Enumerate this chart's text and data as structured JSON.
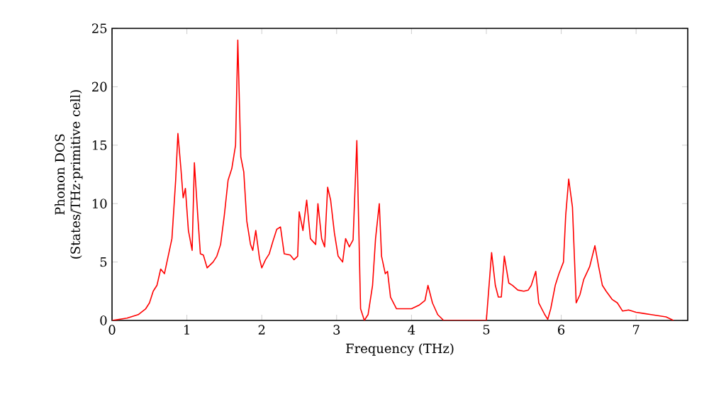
{
  "chart_data": {
    "type": "line",
    "xlabel": "Frequency (THz)",
    "ylabel": "Phonon DOS (States/THz·primitive cell)",
    "xlim": [
      0,
      7.69
    ],
    "ylim": [
      0,
      25
    ],
    "xticks": [
      0,
      1,
      2,
      3,
      4,
      5,
      6,
      7
    ],
    "yticks": [
      0,
      5,
      10,
      15,
      20,
      25
    ],
    "marker": "none",
    "line_style": "solid",
    "series": [
      {
        "color": "#ff0000",
        "x": [
          0,
          0.2,
          0.35,
          0.45,
          0.5,
          0.55,
          0.6,
          0.65,
          0.7,
          0.75,
          0.8,
          0.85,
          0.88,
          0.92,
          0.95,
          0.98,
          1.02,
          1.07,
          1.1,
          1.15,
          1.18,
          1.22,
          1.27,
          1.35,
          1.4,
          1.45,
          1.5,
          1.55,
          1.6,
          1.65,
          1.68,
          1.72,
          1.76,
          1.8,
          1.85,
          1.88,
          1.92,
          1.97,
          2.0,
          2.05,
          2.1,
          2.15,
          2.2,
          2.25,
          2.3,
          2.38,
          2.43,
          2.48,
          2.5,
          2.55,
          2.6,
          2.65,
          2.72,
          2.75,
          2.8,
          2.84,
          2.88,
          2.92,
          2.97,
          3.02,
          3.08,
          3.12,
          3.17,
          3.22,
          3.27,
          3.32,
          3.37,
          3.42,
          3.48,
          3.52,
          3.57,
          3.6,
          3.65,
          3.68,
          3.72,
          3.8,
          4.0,
          4.1,
          4.18,
          4.22,
          4.28,
          4.35,
          4.43,
          5.0,
          5.07,
          5.12,
          5.16,
          5.2,
          5.24,
          5.3,
          5.35,
          5.42,
          5.5,
          5.56,
          5.6,
          5.66,
          5.7,
          5.78,
          5.82,
          5.86,
          5.92,
          5.97,
          6.03,
          6.06,
          6.1,
          6.15,
          6.2,
          6.25,
          6.3,
          6.38,
          6.45,
          6.5,
          6.55,
          6.6,
          6.68,
          6.75,
          6.82,
          6.9,
          7.0,
          7.1,
          7.2,
          7.3,
          7.4,
          7.5
        ],
        "values": [
          0,
          0.2,
          0.5,
          1,
          1.5,
          2.5,
          3,
          4.4,
          4,
          5.5,
          7,
          12,
          16,
          13,
          10.5,
          11.3,
          7.7,
          6,
          13.5,
          8.5,
          5.7,
          5.6,
          4.5,
          5,
          5.5,
          6.5,
          9,
          12,
          13,
          15,
          24,
          14,
          12.7,
          8.5,
          6.5,
          6,
          7.7,
          5.3,
          4.5,
          5.2,
          5.7,
          6.8,
          7.8,
          8,
          5.7,
          5.6,
          5.2,
          5.5,
          9.3,
          7.7,
          10.3,
          7,
          6.5,
          10,
          7,
          6.3,
          11.4,
          10.3,
          7.5,
          5.5,
          5,
          7,
          6.3,
          6.9,
          15.4,
          1,
          0,
          0.5,
          3,
          7,
          10,
          5.5,
          4,
          4.2,
          2,
          1,
          1,
          1.3,
          1.7,
          3,
          1.5,
          0.5,
          0,
          0,
          5.8,
          3,
          2,
          2,
          5.5,
          3.2,
          3,
          2.6,
          2.5,
          2.6,
          3,
          4.2,
          1.5,
          0.5,
          0.1,
          1,
          3,
          4,
          5,
          9,
          12.1,
          9.7,
          1.5,
          2.2,
          3.5,
          4.6,
          6.4,
          4.6,
          3,
          2.5,
          1.8,
          1.5,
          0.8,
          0.9,
          0.7,
          0.6,
          0.5,
          0.4,
          0.3,
          0
        ]
      }
    ]
  }
}
